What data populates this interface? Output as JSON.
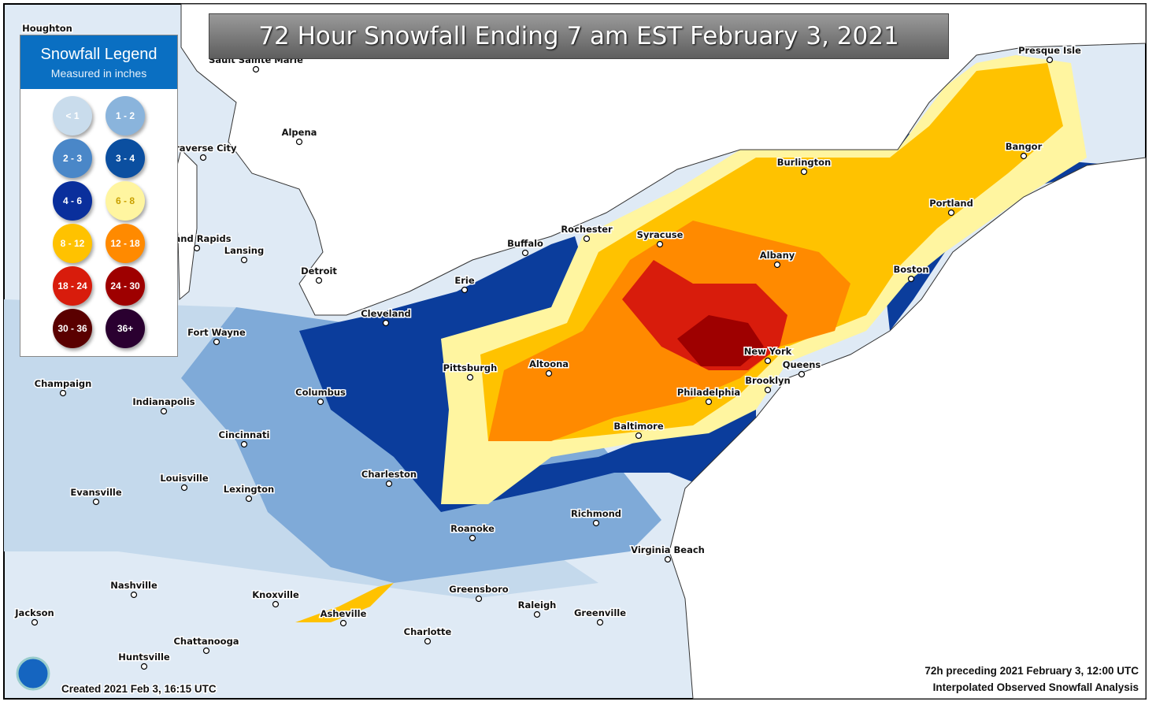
{
  "title": "72 Hour Snowfall Ending 7 am EST February 3, 2021",
  "legend": {
    "title": "Snowfall Legend",
    "subtitle": "Measured in inches",
    "items": [
      {
        "label": "< 1",
        "color": "#c9dcec"
      },
      {
        "label": "1 - 2",
        "color": "#8ab4dc"
      },
      {
        "label": "2 - 3",
        "color": "#4a87c8"
      },
      {
        "label": "3 - 4",
        "color": "#0b4fa0"
      },
      {
        "label": "4 - 6",
        "color": "#0a2f9c"
      },
      {
        "label": "6 - 8",
        "color": "#fff5a0"
      },
      {
        "label": "8 - 12",
        "color": "#ffc200"
      },
      {
        "label": "12 - 18",
        "color": "#ff8a00"
      },
      {
        "label": "18 - 24",
        "color": "#d81c0c"
      },
      {
        "label": "24 - 30",
        "color": "#9e0000"
      },
      {
        "label": "30 - 36",
        "color": "#5a0000"
      },
      {
        "label": "36+",
        "color": "#2a0030"
      }
    ]
  },
  "cities": [
    "Houghton",
    "Sault Sainte Marie",
    "Alpena",
    "Traverse City",
    "Grand Rapids",
    "Lansing",
    "Detroit",
    "Fort Wayne",
    "Champaign",
    "Indianapolis",
    "Columbus",
    "Cincinnati",
    "Louisville",
    "Evansville",
    "Lexington",
    "Charleston",
    "Nashville",
    "Knoxville",
    "Asheville",
    "Chattanooga",
    "Huntsville",
    "Jackson",
    "Cleveland",
    "Erie",
    "Buffalo",
    "Rochester",
    "Syracuse",
    "Pittsburgh",
    "Altoona",
    "Burlington",
    "Albany",
    "Presque Isle",
    "Bangor",
    "Portland",
    "Boston",
    "New York",
    "Queens",
    "Brooklyn",
    "Philadelphia",
    "Baltimore",
    "Richmond",
    "Roanoke",
    "Virginia Beach",
    "Greensboro",
    "Raleigh",
    "Greenville",
    "Charlotte"
  ],
  "footer": {
    "created": "Created 2021 Feb 3, 16:15 UTC",
    "period": "72h preceding 2021 February 3, 12:00 UTC",
    "analysis": "Interpolated Observed Snowfall Analysis"
  }
}
